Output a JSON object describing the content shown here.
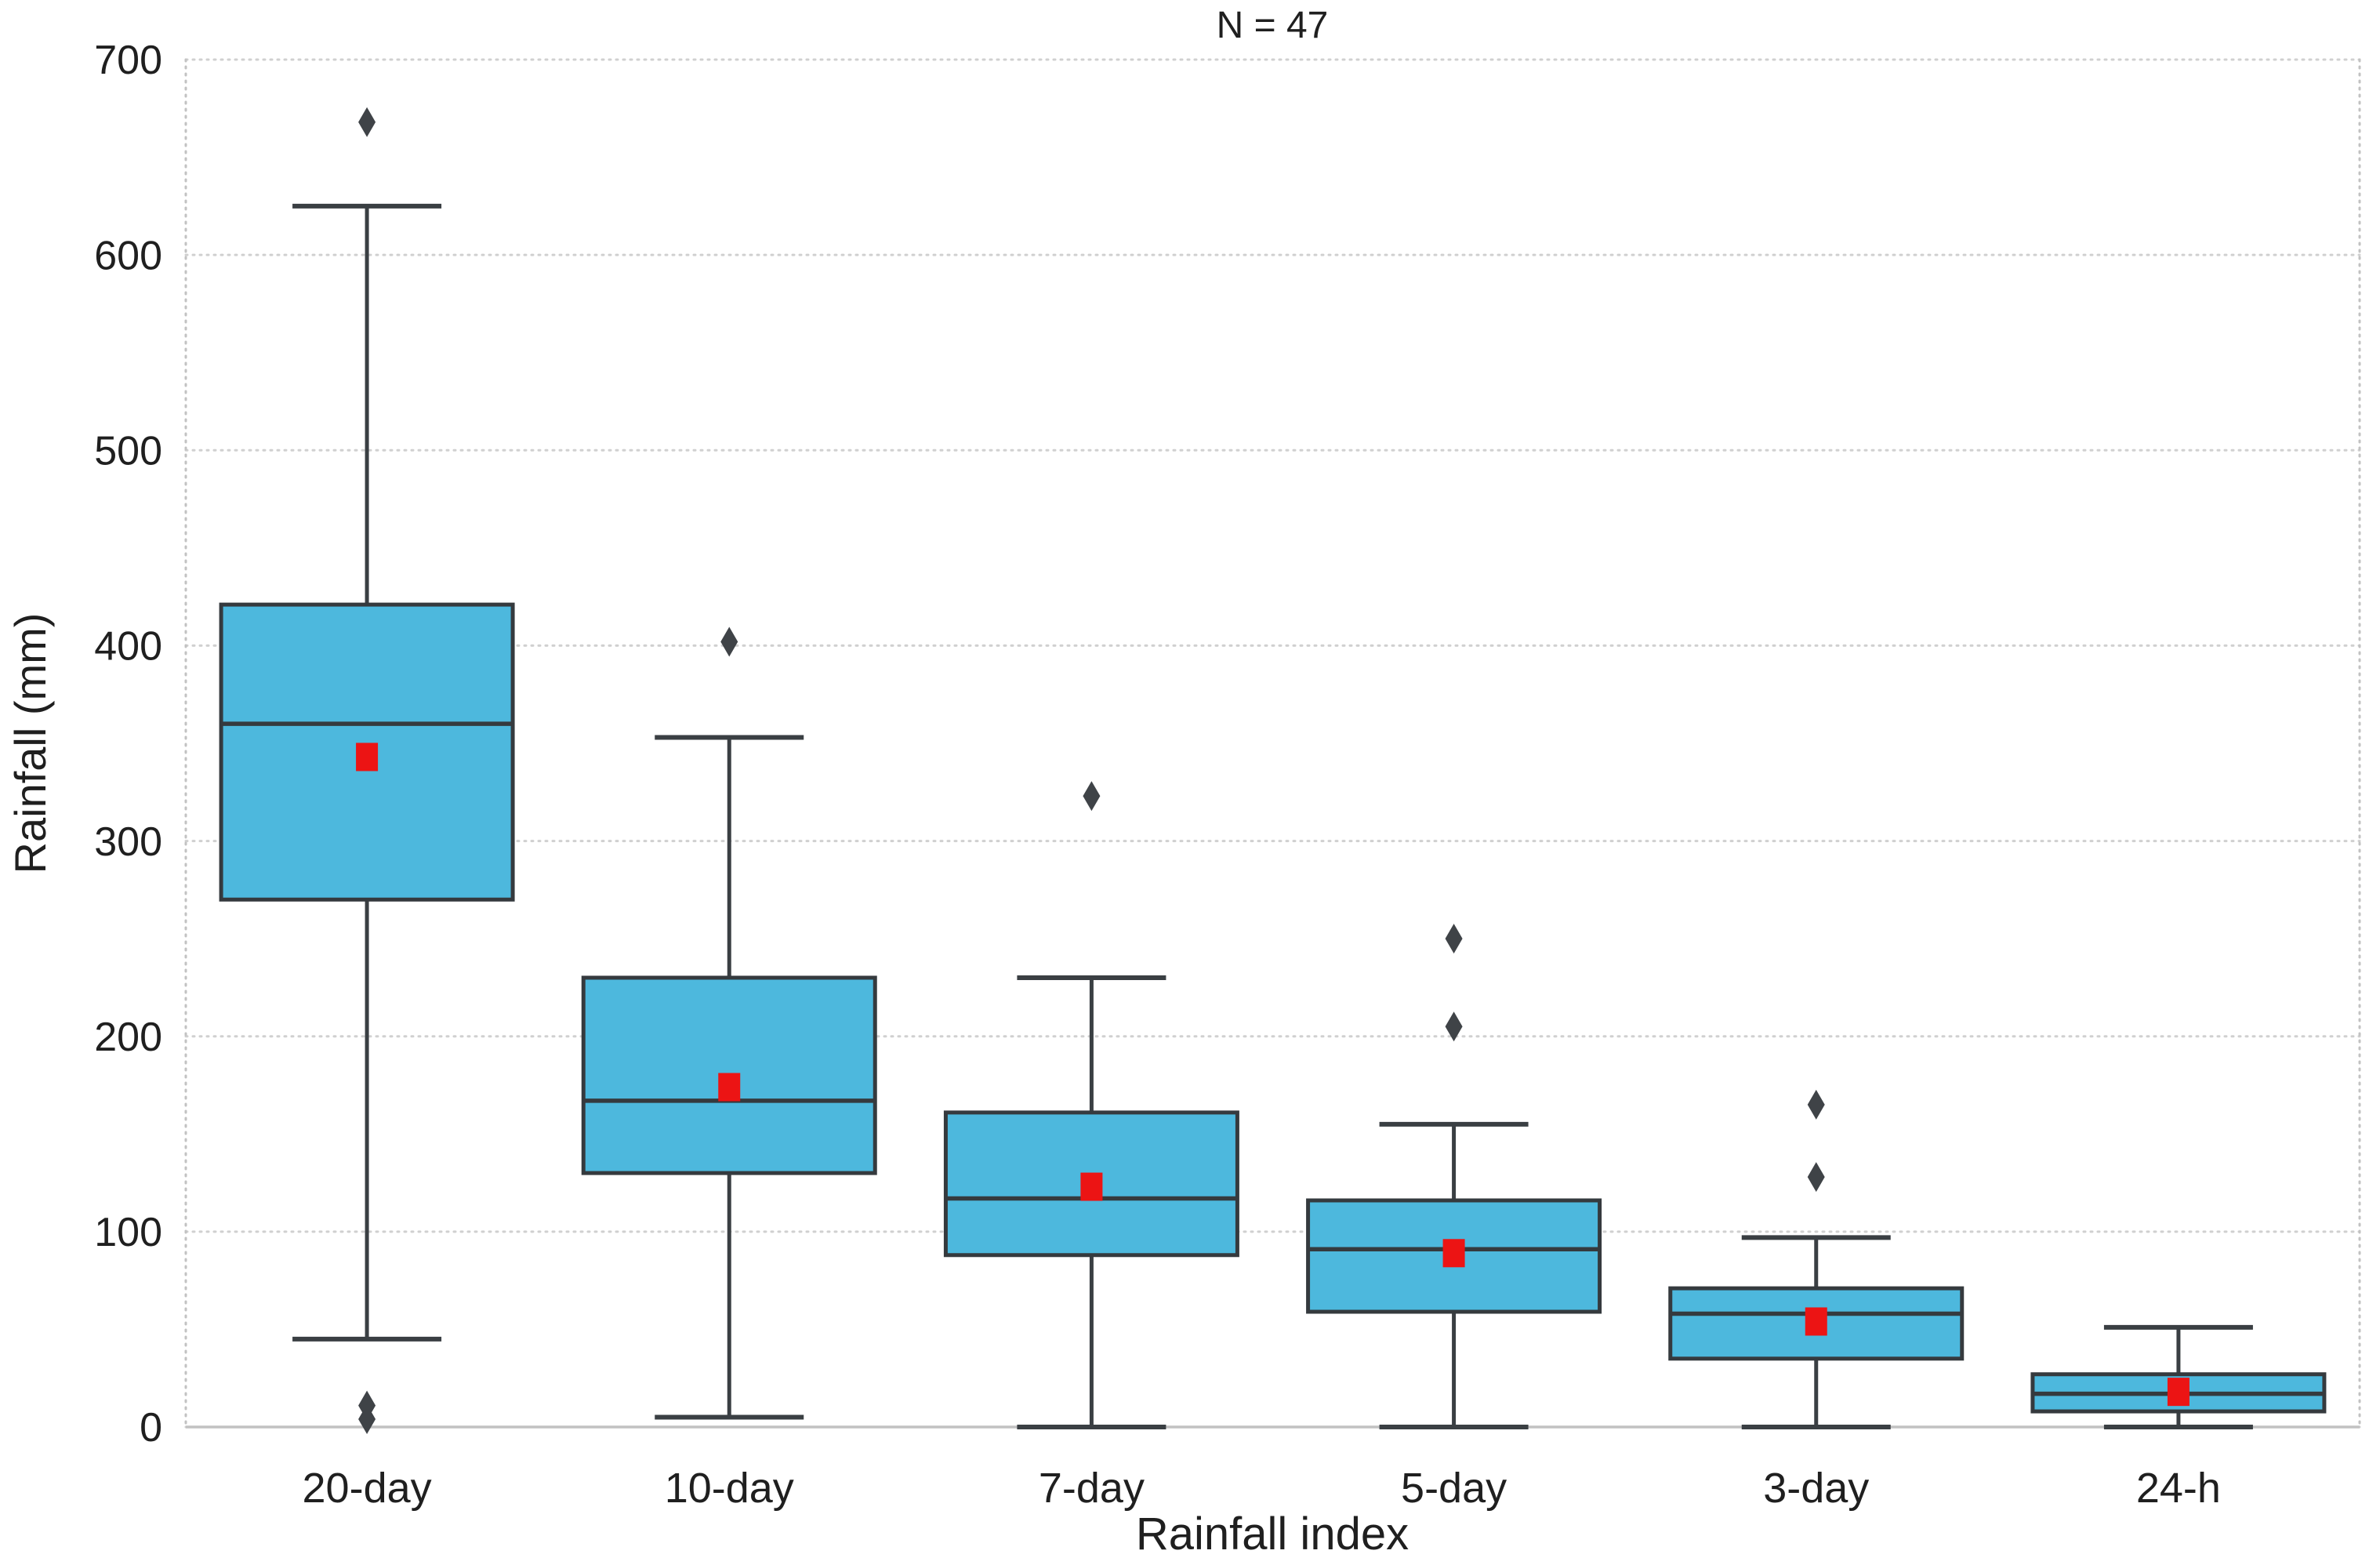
{
  "title": "N = 47",
  "axes": {
    "x_label": "Rainfall index",
    "y_label": "Rainfall (mm)"
  },
  "colors": {
    "box_fill": "#4db8dd",
    "box_edge": "#353a3e",
    "median_line": "#353a3e",
    "whisker": "#3a3f43",
    "mean_marker": "#ec1414",
    "outlier": "#3f4347",
    "gridline": "#d0d0d0",
    "spine": "#c2c2c2",
    "text": "#1f1f1f",
    "background": "#ffffff"
  },
  "chart_data": {
    "type": "boxplot",
    "title": "N = 47",
    "xlabel": "Rainfall index",
    "ylabel": "Rainfall (mm)",
    "ylim": [
      0,
      700
    ],
    "y_ticks": [
      0,
      100,
      200,
      300,
      400,
      500,
      600,
      700
    ],
    "grid": "horizontal, light dotted, every 100 mm",
    "legend": "none",
    "sample_size": 47,
    "categories": [
      "20-day",
      "10-day",
      "7-day",
      "5-day",
      "3-day",
      "24-h"
    ],
    "series": [
      {
        "category": "20-day",
        "whisker_low": 45,
        "q1": 270,
        "median": 360,
        "q3": 421,
        "whisker_high": 625,
        "mean": 343,
        "outliers": [
          668,
          11,
          4
        ]
      },
      {
        "category": "10-day",
        "whisker_low": 5,
        "q1": 130,
        "median": 167,
        "q3": 230,
        "whisker_high": 353,
        "mean": 174,
        "outliers": [
          402
        ]
      },
      {
        "category": "7-day",
        "whisker_low": 0,
        "q1": 88,
        "median": 117,
        "q3": 161,
        "whisker_high": 230,
        "mean": 123,
        "outliers": [
          323
        ]
      },
      {
        "category": "5-day",
        "whisker_low": 0,
        "q1": 59,
        "median": 91,
        "q3": 116,
        "whisker_high": 155,
        "mean": 89,
        "outliers": [
          250,
          205
        ]
      },
      {
        "category": "3-day",
        "whisker_low": 0,
        "q1": 35,
        "median": 58,
        "q3": 71,
        "whisker_high": 97,
        "mean": 54,
        "outliers": [
          165,
          128
        ]
      },
      {
        "category": "24-h",
        "whisker_low": 0,
        "q1": 8,
        "median": 17,
        "q3": 27,
        "whisker_high": 51,
        "mean": 18,
        "outliers": []
      }
    ]
  }
}
